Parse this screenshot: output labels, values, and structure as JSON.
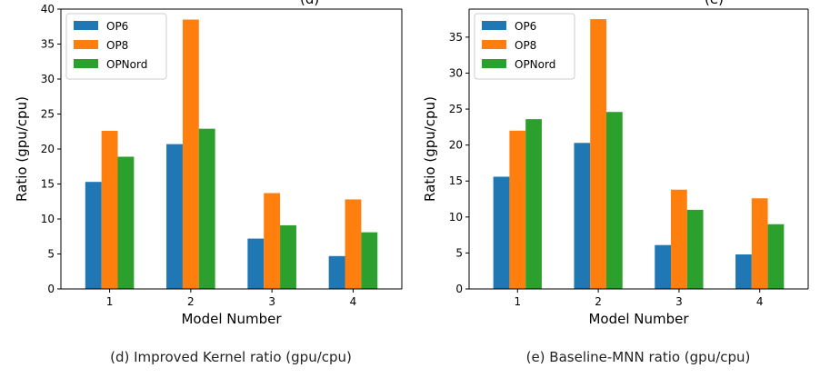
{
  "header_fragments": [
    "(d)",
    "(e)"
  ],
  "colors": {
    "OP6": "#1f77b4",
    "OP8": "#ff7f0e",
    "OPNord": "#2ca02c"
  },
  "chart_data": [
    {
      "type": "bar",
      "caption": "(d) Improved Kernel ratio (gpu/cpu)",
      "xlabel": "Model Number",
      "ylabel": "Ratio (gpu/cpu)",
      "categories": [
        "1",
        "2",
        "3",
        "4"
      ],
      "ylim": [
        0,
        40
      ],
      "yticks": [
        0,
        5,
        10,
        15,
        20,
        25,
        30,
        35,
        40
      ],
      "legend_position": "top-left",
      "grid": false,
      "series": [
        {
          "name": "OP6",
          "values": [
            15.3,
            20.7,
            7.2,
            4.7
          ]
        },
        {
          "name": "OP8",
          "values": [
            22.6,
            38.5,
            13.7,
            12.8
          ]
        },
        {
          "name": "OPNord",
          "values": [
            18.9,
            22.9,
            9.1,
            8.1
          ]
        }
      ]
    },
    {
      "type": "bar",
      "caption": "(e) Baseline-MNN ratio (gpu/cpu)",
      "xlabel": "Model Number",
      "ylabel": "Ratio (gpu/cpu)",
      "categories": [
        "1",
        "2",
        "3",
        "4"
      ],
      "ylim": [
        0,
        38.9
      ],
      "yticks": [
        0,
        5,
        10,
        15,
        20,
        25,
        30,
        35
      ],
      "legend_position": "top-left",
      "grid": false,
      "series": [
        {
          "name": "OP6",
          "values": [
            15.6,
            20.3,
            6.1,
            4.8
          ]
        },
        {
          "name": "OP8",
          "values": [
            22.0,
            37.5,
            13.8,
            12.6
          ]
        },
        {
          "name": "OPNord",
          "values": [
            23.6,
            24.6,
            11.0,
            9.0
          ]
        }
      ]
    }
  ]
}
